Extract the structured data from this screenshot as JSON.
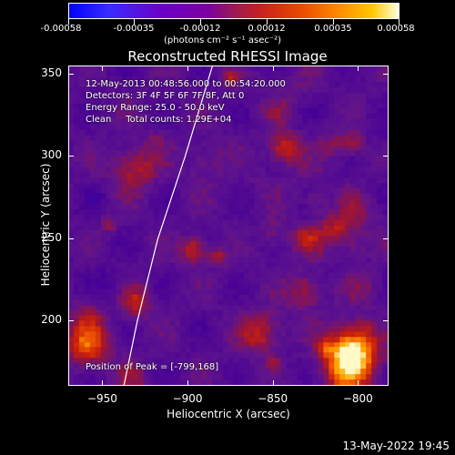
{
  "colorbar": {
    "tick_labels": [
      "-0.00058",
      "-0.00035",
      "-0.00012",
      "0.00012",
      "0.00035",
      "0.00058"
    ],
    "unit": "(photons cm⁻² s⁻¹ asec⁻²)"
  },
  "header": {
    "title": "Reconstructed RHESSI Image"
  },
  "info": {
    "line1": "12-May-2013 00:48:56.000 to 00:54:20.000",
    "line2": "Detectors: 3F 4F 5F 6F 7F 8F, Att 0",
    "line3": "Energy Range: 25.0 - 50.0 keV",
    "line4": "Clean     Total counts: 1.29E+04",
    "peak": "Position of Peak = [-799,168]"
  },
  "footer": {
    "timestamp": "13-May-2022 19:45"
  },
  "chart_data": {
    "type": "heatmap",
    "title": "Reconstructed RHESSI Image",
    "xlabel": "Heliocentric X (arcsec)",
    "ylabel": "Heliocentric Y (arcsec)",
    "xlim": [
      -970,
      -782
    ],
    "ylim": [
      160,
      355
    ],
    "x_ticks": [
      -950,
      -900,
      -850,
      -800
    ],
    "y_ticks": [
      200,
      250,
      300,
      350
    ],
    "x_tick_labels": [
      "−950",
      "−900",
      "−850",
      "−800"
    ],
    "y_tick_labels": [
      "200",
      "250",
      "300",
      "350"
    ],
    "colorbar_range": [
      -0.00058,
      0.00058
    ],
    "peak": [
      -799,
      168
    ],
    "limb_curve": [
      [
        -938,
        160
      ],
      [
        -930,
        200
      ],
      [
        -918,
        250
      ],
      [
        -902,
        300
      ],
      [
        -886,
        355
      ]
    ]
  }
}
